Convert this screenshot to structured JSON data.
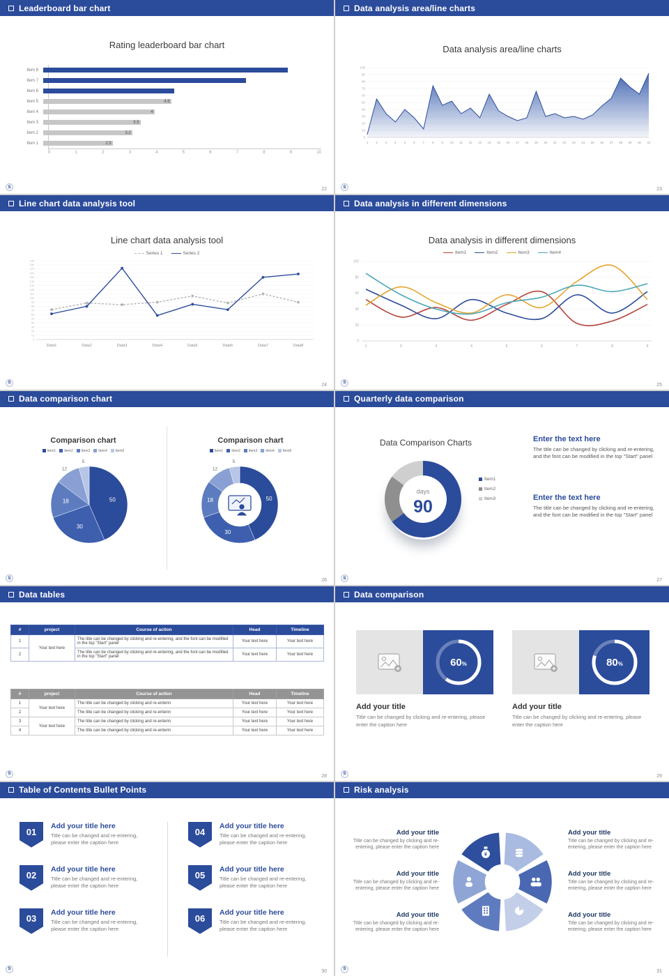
{
  "accent": "#2b4b9b",
  "logo_text": "S",
  "slides": [
    {
      "header": "Leaderboard bar chart",
      "page": "22",
      "title": "Rating leaderboard bar chart"
    },
    {
      "header": "Data analysis area/line charts",
      "page": "23",
      "title": "Data analysis area/line charts"
    },
    {
      "header": "Line chart data analysis tool",
      "page": "24",
      "title": "Line chart data analysis tool"
    },
    {
      "header": "Data analysis in different dimensions",
      "page": "25",
      "title": "Data analysis in different dimensions"
    },
    {
      "header": "Data comparison chart",
      "page": "26",
      "left_title": "Comparison chart",
      "right_title": "Comparison chart"
    },
    {
      "header": "Quarterly data comparison",
      "page": "27",
      "title": "Data Comparison Charts",
      "text_blocks": [
        {
          "heading": "Enter the text here",
          "body": "The title can be changed by clicking and re-entering, and the font can be modified in the top \"Start\" panel"
        },
        {
          "heading": "Enter the text here",
          "body": "The title can be changed by clicking and re-entering, and the font can be modified in the top \"Start\" panel"
        }
      ]
    },
    {
      "header": "Data tables",
      "page": "28",
      "table1": {
        "columns": [
          "#",
          "project",
          "Course of action",
          "Head",
          "Timeline"
        ],
        "rows": [
          {
            "num": "1",
            "project": "Your text here",
            "course": "The title can be changed by clicking and re-entering, and the font can be modified in the top \"Start\" panel",
            "head": "Your text here",
            "timeline": "Your text here"
          },
          {
            "num": "2",
            "project": "",
            "course": "The title can be changed by clicking and re-entering, and the font can be modified in the top \"Start\" panel",
            "head": "Your text here",
            "timeline": "Your text here"
          }
        ]
      },
      "table2": {
        "columns": [
          "#",
          "project",
          "Course of action",
          "Head",
          "Timeline"
        ],
        "rows": [
          {
            "num": "1",
            "project": "Your text here",
            "course": "The title can be changed by clicking and re-enterin",
            "head": "Your text here",
            "timeline": "Your text here"
          },
          {
            "num": "2",
            "project": "",
            "course": "The title can be changed by clicking and re-enterin",
            "head": "Your text here",
            "timeline": "Your text here"
          },
          {
            "num": "3",
            "project": "Your text here",
            "course": "The title can be changed by clicking and re-enterin",
            "head": "Your text here",
            "timeline": "Your text here"
          },
          {
            "num": "4",
            "project": "",
            "course": "The title can be changed by clicking and re-enterin",
            "head": "Your text here",
            "timeline": "Your text here"
          }
        ]
      }
    },
    {
      "header": "Data comparison",
      "page": "29",
      "cards": [
        {
          "percent_label": "60%",
          "title": "Add your title",
          "caption": "Title can be changed by clicking and re-entering, please enter the caption here"
        },
        {
          "percent_label": "80%",
          "title": "Add your title",
          "caption": "Title can be changed by clicking and re-entering, please enter the caption here"
        }
      ]
    },
    {
      "header": "Table of Contents Bullet Points",
      "page": "30",
      "items": [
        {
          "num": "01",
          "title": "Add your title here",
          "caption": "Title can be changed and re-entering, please enter the caption here"
        },
        {
          "num": "02",
          "title": "Add your title here",
          "caption": "Title can be changed and re-entering, please enter the caption here"
        },
        {
          "num": "03",
          "title": "Add your title here",
          "caption": "Title can be changed and re-entering, please enter the caption here"
        },
        {
          "num": "04",
          "title": "Add your title here",
          "caption": "Title can be changed and re-entering, please enter the caption here"
        },
        {
          "num": "05",
          "title": "Add your title here",
          "caption": "Title can be changed and re-entering, please enter the caption here"
        },
        {
          "num": "06",
          "title": "Add your title here",
          "caption": "Title can be changed and re-entering, please enter the caption here"
        }
      ]
    },
    {
      "header": "Risk analysis",
      "page": "31",
      "items": [
        {
          "icon": "money-bag-icon",
          "title": "Add your title",
          "caption": "Title can be changed by clicking and re-entering, please enter the caption here"
        },
        {
          "icon": "person-icon",
          "title": "Add your title",
          "caption": "Title can be changed by clicking and re-entering, please enter the caption here"
        },
        {
          "icon": "building-icon",
          "title": "Add your title",
          "caption": "Title can be changed by clicking and re-entering, please enter the caption here"
        },
        {
          "icon": "coins-icon",
          "title": "Add your title",
          "caption": "Title can be changed by clicking and re-entering, please enter the caption here"
        },
        {
          "icon": "people-icon",
          "title": "Add your title",
          "caption": "Title can be changed by clicking and re-entering, please enter the caption here"
        },
        {
          "icon": "pie-chart-icon",
          "title": "Add your title",
          "caption": "Title can be changed by clicking and re-entering, please enter the caption here"
        }
      ]
    }
  ],
  "chart_data": [
    {
      "slide": 22,
      "type": "bar",
      "orientation": "horizontal",
      "title": "Rating leaderboard bar chart",
      "categories": [
        "Item 8",
        "Item 7",
        "Item 6",
        "Item 5",
        "Item 4",
        "Item 3",
        "Item 2",
        "Item 1"
      ],
      "values": [
        8.8,
        7.3,
        4.7,
        4.6,
        4,
        3.5,
        3.2,
        2.5
      ],
      "value_labels": [
        "",
        "",
        "",
        "4.6",
        "4",
        "3.5",
        "3.2",
        "2.5"
      ],
      "bar_colors": [
        "#2b4b9b",
        "#2b4b9b",
        "#2b4b9b",
        "#c6c6c6",
        "#c6c6c6",
        "#c6c6c6",
        "#c6c6c6",
        "#c6c6c6"
      ],
      "xlim": [
        0,
        10
      ],
      "xticks": [
        0,
        1,
        2,
        3,
        4,
        5,
        6,
        7,
        8,
        9,
        10
      ]
    },
    {
      "slide": 23,
      "type": "area",
      "title": "Data analysis area/line charts",
      "x": [
        1,
        2,
        3,
        4,
        5,
        6,
        7,
        8,
        9,
        10,
        11,
        12,
        13,
        14,
        15,
        16,
        17,
        18,
        19,
        20,
        21,
        22,
        23,
        24,
        25,
        26,
        27,
        28,
        29,
        30,
        31
      ],
      "values": [
        4,
        55,
        34,
        22,
        40,
        28,
        12,
        74,
        46,
        52,
        34,
        42,
        28,
        62,
        38,
        30,
        24,
        28,
        66,
        30,
        34,
        28,
        30,
        26,
        32,
        45,
        56,
        85,
        72,
        62,
        92
      ],
      "ylim": [
        0,
        100
      ],
      "ytick_step": 10,
      "line_color": "#2b4b9b"
    },
    {
      "slide": 24,
      "type": "line",
      "title": "Line chart data analysis tool",
      "categories": [
        "Data1",
        "Data2",
        "Data3",
        "Data4",
        "Data5",
        "Data6",
        "Data7",
        "Data8"
      ],
      "series": [
        {
          "name": "Series 1",
          "color": "#b3b3b3",
          "dashed": true,
          "values": [
            72,
            88,
            84,
            90,
            105,
            88,
            110,
            90
          ]
        },
        {
          "name": "Series 2",
          "color": "#2b4b9b",
          "dashed": false,
          "values": [
            62,
            80,
            172,
            58,
            85,
            72,
            150,
            158
          ]
        }
      ],
      "ylim": [
        0,
        190
      ],
      "ytick_step": 10
    },
    {
      "slide": 25,
      "type": "line",
      "smooth": true,
      "title": "Data analysis in different dimensions",
      "x": [
        1,
        2,
        3,
        4,
        5,
        6,
        7,
        8,
        9
      ],
      "series": [
        {
          "name": "Item1",
          "color": "#b5443c",
          "values": [
            52,
            30,
            42,
            26,
            46,
            62,
            22,
            25,
            46
          ]
        },
        {
          "name": "Item2",
          "color": "#2b4b9b",
          "values": [
            65,
            45,
            28,
            52,
            35,
            28,
            58,
            35,
            62
          ]
        },
        {
          "name": "Item3",
          "color": "#e5a32b",
          "values": [
            45,
            68,
            48,
            35,
            58,
            42,
            75,
            95,
            52
          ]
        },
        {
          "name": "Item4",
          "color": "#49a8b8",
          "values": [
            85,
            58,
            40,
            34,
            48,
            55,
            70,
            62,
            72
          ]
        }
      ],
      "ylim": [
        0,
        100
      ],
      "ytick_step": 20
    },
    {
      "slide": 26,
      "type": "pie",
      "variants": [
        "pie",
        "donut"
      ],
      "titles": [
        "Comparison chart",
        "Comparison chart"
      ],
      "labels": [
        "Item1",
        "Item2",
        "Item3",
        "Item4",
        "Item5"
      ],
      "values": [
        50,
        30,
        18,
        12,
        5
      ],
      "colors": [
        "#2b4b9b",
        "#3d5fae",
        "#5d7cc0",
        "#8aa0d4",
        "#b7c5e6"
      ]
    },
    {
      "slide": 27,
      "type": "donut",
      "title": "Data Comparison Charts",
      "labels": [
        "Item1",
        "Item2",
        "Item3"
      ],
      "values": [
        65,
        20,
        15
      ],
      "colors": [
        "#2b4b9b",
        "#8f8f8f",
        "#cfcfcf"
      ],
      "center_value": "90",
      "center_label": "days"
    },
    {
      "slide": 29,
      "type": "donut",
      "unit": "%",
      "values": [
        60,
        80
      ]
    }
  ]
}
